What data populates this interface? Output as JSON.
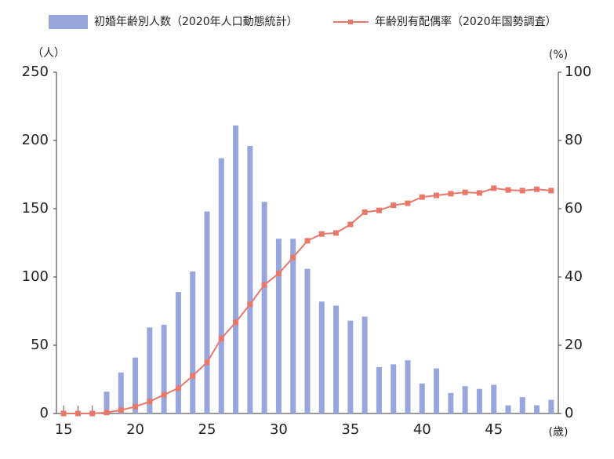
{
  "chart_data": {
    "type": "bar-line",
    "x": [
      15,
      16,
      17,
      18,
      19,
      20,
      21,
      22,
      23,
      24,
      25,
      26,
      27,
      28,
      29,
      30,
      31,
      32,
      33,
      34,
      35,
      36,
      37,
      38,
      39,
      40,
      41,
      42,
      43,
      44,
      45,
      46,
      47,
      48,
      49
    ],
    "series": [
      {
        "name": "初婚年齢別人数（2020年人口動態統計）",
        "type": "bar",
        "color": "#97a6dc",
        "values": [
          0,
          0,
          0,
          16,
          30,
          41,
          63,
          65,
          89,
          104,
          148,
          187,
          211,
          196,
          155,
          128,
          128,
          106,
          82,
          79,
          68,
          71,
          34,
          36,
          39,
          22,
          33,
          15,
          20,
          18,
          21,
          6,
          12,
          6,
          10
        ]
      },
      {
        "name": "年齢別有配偶率（2020年国勢調査）",
        "type": "line",
        "axis": "y2",
        "color": "#e8796a",
        "values": [
          0,
          0,
          0,
          0.3,
          1,
          2,
          3.5,
          5.5,
          7.4,
          11,
          15,
          22,
          26.7,
          32,
          37.7,
          41,
          45.7,
          50.6,
          52.6,
          52.9,
          55.4,
          59,
          59.5,
          61,
          61.6,
          63.4,
          63.9,
          64.4,
          64.8,
          64.6,
          66,
          65.5,
          65.3,
          65.7,
          65.3
        ]
      }
    ],
    "xlim": [
      14.5,
      49.5
    ],
    "xticks": [
      15,
      20,
      25,
      30,
      35,
      40,
      45
    ],
    "ylim": [
      0,
      250
    ],
    "yticks": [
      0,
      50,
      100,
      150,
      200,
      250
    ],
    "y2lim": [
      0,
      100
    ],
    "y2ticks": [
      0,
      20,
      40,
      60,
      80,
      100
    ],
    "y_label": "（人）",
    "y2_label": "(%)",
    "x_label": "(歳)"
  }
}
